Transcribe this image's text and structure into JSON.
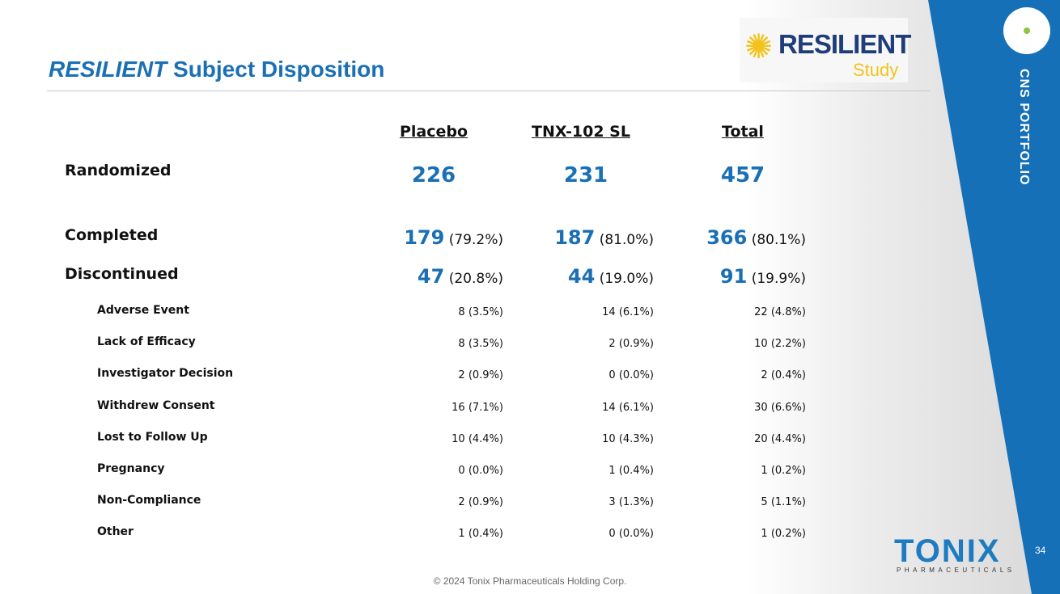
{
  "title": {
    "italic": "RESILIENT",
    "rest": " Subject Disposition"
  },
  "logo": {
    "name": "RESILIENT",
    "sub": "Study"
  },
  "side_label": "CNS PORTFOLIO",
  "brand": {
    "name": "TONIX",
    "sub": "PHARMACEUTICALS"
  },
  "page_number": "34",
  "footer": "© 2024 Tonix Pharmaceuticals Holding Corp.",
  "columns": [
    "Placebo",
    "TNX-102 SL",
    "Total"
  ],
  "main_rows": [
    {
      "label": "Randomized",
      "values": [
        {
          "n": "226",
          "pct": ""
        },
        {
          "n": "231",
          "pct": ""
        },
        {
          "n": "457",
          "pct": ""
        }
      ]
    },
    {
      "label": "Completed",
      "values": [
        {
          "n": "179",
          "pct": " (79.2%)"
        },
        {
          "n": "187",
          "pct": " (81.0%)"
        },
        {
          "n": "366",
          "pct": " (80.1%)"
        }
      ]
    },
    {
      "label": "Discontinued",
      "values": [
        {
          "n": "47",
          "pct": " (20.8%)"
        },
        {
          "n": "44",
          "pct": " (19.0%)"
        },
        {
          "n": "91",
          "pct": " (19.9%)"
        }
      ]
    }
  ],
  "sub_rows": [
    {
      "label": "Adverse Event",
      "values": [
        "8 (3.5%)",
        "14 (6.1%)",
        "22 (4.8%)"
      ]
    },
    {
      "label": "Lack of Efficacy",
      "values": [
        "8 (3.5%)",
        "2 (0.9%)",
        "10 (2.2%)"
      ]
    },
    {
      "label": "Investigator Decision",
      "values": [
        "2 (0.9%)",
        "0 (0.0%)",
        "2 (0.4%)"
      ]
    },
    {
      "label": "Withdrew Consent",
      "values": [
        "16 (7.1%)",
        "14 (6.1%)",
        "30 (6.6%)"
      ]
    },
    {
      "label": "Lost to Follow Up",
      "values": [
        "10 (4.4%)",
        "10 (4.3%)",
        "20 (4.4%)"
      ]
    },
    {
      "label": "Pregnancy",
      "values": [
        "0 (0.0%)",
        "1 (0.4%)",
        "1 (0.2%)"
      ]
    },
    {
      "label": "Non-Compliance",
      "values": [
        "2 (0.9%)",
        "3 (1.3%)",
        "5 (1.1%)"
      ]
    },
    {
      "label": "Other",
      "values": [
        "1 (0.4%)",
        "0 (0.0%)",
        "1 (0.2%)"
      ]
    }
  ]
}
